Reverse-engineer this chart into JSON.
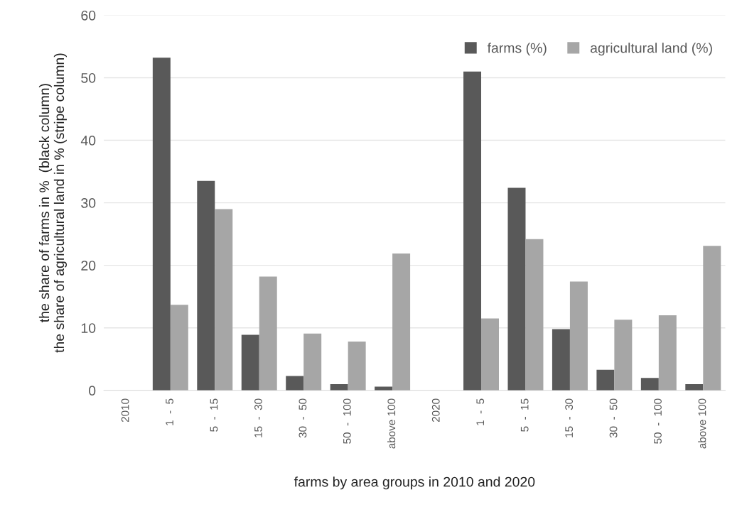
{
  "chart_data": {
    "type": "bar",
    "xlabel": "farms by area groups in 2010 and 2020",
    "ylabel": "the share of farms in %  (black column)\nthe share of agricultural land in % (stripe column)",
    "categories": [
      "2010",
      "1  -  5",
      "5  -  15",
      "15  -  30",
      "30  -  50",
      "50  -  100",
      "above 100",
      "2020",
      "1  -  5",
      "5  -  15",
      "15  -  30",
      "30  -  50",
      "50  -  100",
      "above 100"
    ],
    "series": [
      {
        "name": "farms (%)",
        "color": "#595959",
        "values": [
          null,
          53.2,
          33.5,
          8.9,
          2.3,
          1.0,
          0.6,
          null,
          51.0,
          32.4,
          9.8,
          3.3,
          2.0,
          1.0
        ]
      },
      {
        "name": "agricultural land (%)",
        "color": "#a6a6a6",
        "values": [
          null,
          13.7,
          29.0,
          18.2,
          9.1,
          7.8,
          21.9,
          null,
          11.5,
          24.2,
          17.4,
          11.3,
          12.0,
          23.1
        ]
      }
    ],
    "ylim": [
      0,
      60
    ],
    "yticks": [
      0,
      10,
      20,
      30,
      40,
      50,
      60
    ],
    "grid": "y",
    "legend": "top right"
  }
}
